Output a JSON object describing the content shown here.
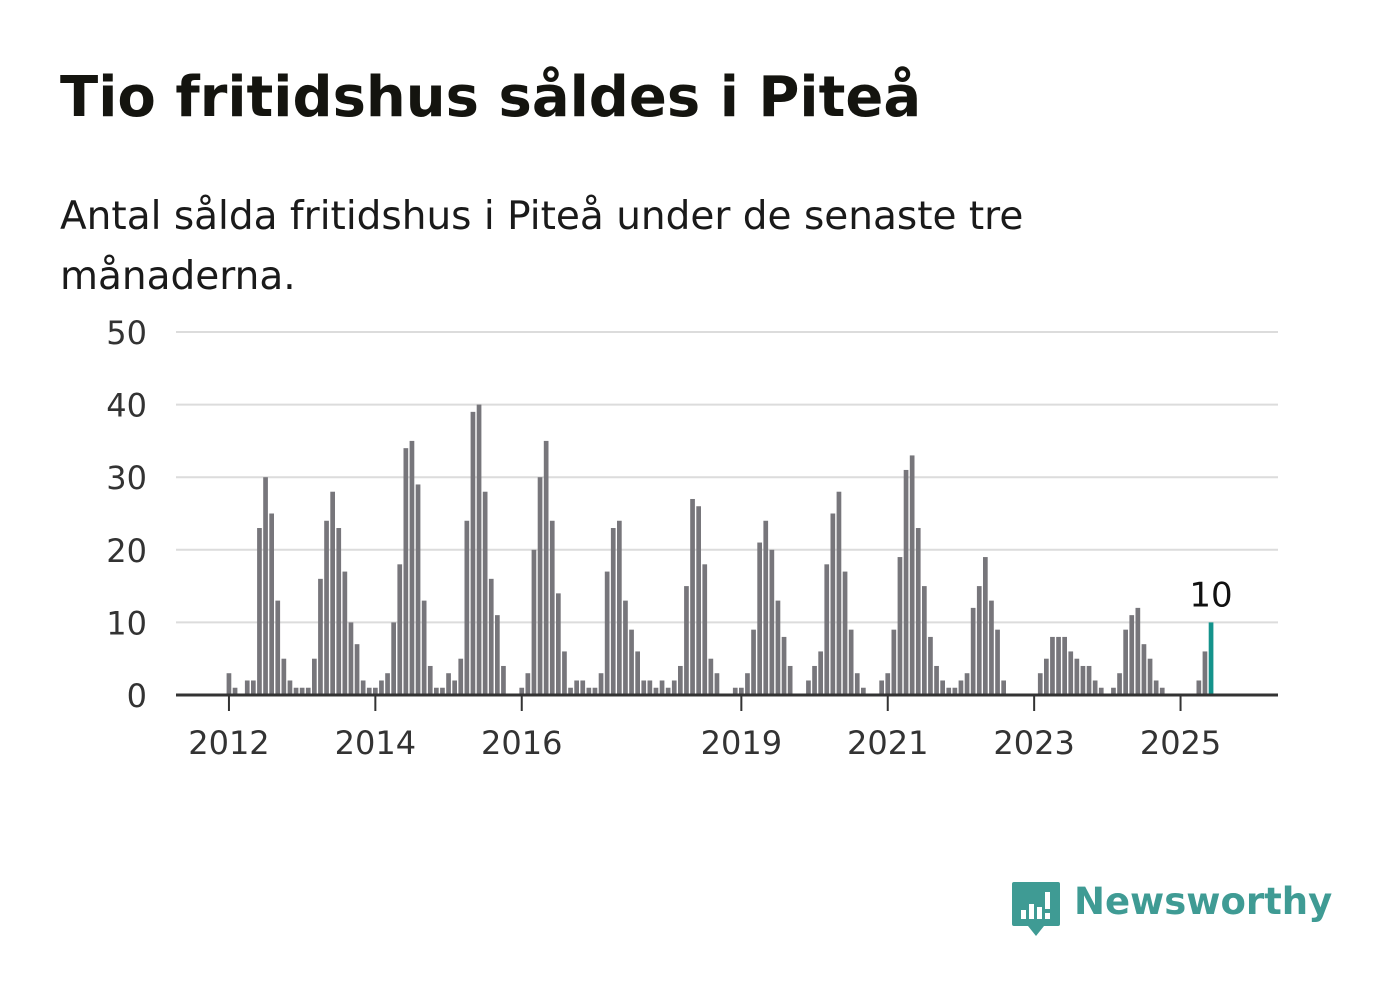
{
  "title": "Tio fritidshus såldes i Piteå",
  "subtitle": "Antal sålda fritidshus i Piteå under de senaste tre månaderna.",
  "logo": {
    "text": "Newsworthy",
    "icon": "newsworthy-logo-icon",
    "color": "#3f9b94"
  },
  "chart_data": {
    "type": "bar",
    "x_start": "2012-01",
    "x_step": "month",
    "ylim": [
      0,
      50
    ],
    "y_ticks": [
      0,
      10,
      20,
      30,
      40,
      50
    ],
    "x_tick_labels": [
      "2012",
      "2014",
      "2016",
      "2019",
      "2021",
      "2023",
      "2025"
    ],
    "grid": true,
    "bar_color": "#77767b",
    "highlight_color": "#14938c",
    "highlight_label": "10",
    "values": [
      3,
      1,
      0,
      2,
      2,
      23,
      30,
      25,
      13,
      5,
      2,
      1,
      1,
      1,
      5,
      16,
      24,
      28,
      23,
      17,
      10,
      7,
      2,
      1,
      1,
      2,
      3,
      10,
      18,
      34,
      35,
      29,
      13,
      4,
      1,
      1,
      3,
      2,
      5,
      24,
      39,
      40,
      28,
      16,
      11,
      4,
      0,
      0,
      1,
      3,
      20,
      30,
      35,
      24,
      14,
      6,
      1,
      2,
      2,
      1,
      1,
      3,
      17,
      23,
      24,
      13,
      9,
      6,
      2,
      2,
      1,
      2,
      1,
      2,
      4,
      15,
      27,
      26,
      18,
      5,
      3,
      0,
      0,
      1,
      1,
      3,
      9,
      21,
      24,
      20,
      13,
      8,
      4,
      0,
      0,
      2,
      4,
      6,
      18,
      25,
      28,
      17,
      9,
      3,
      1,
      0,
      0,
      2,
      3,
      9,
      19,
      31,
      33,
      23,
      15,
      8,
      4,
      2,
      1,
      1,
      2,
      3,
      12,
      15,
      19,
      13,
      9,
      2,
      0,
      0,
      0,
      0,
      0,
      3,
      5,
      8,
      8,
      8,
      6,
      5,
      4,
      4,
      2,
      1,
      0,
      1,
      3,
      9,
      11,
      12,
      7,
      5,
      2,
      1,
      0,
      0,
      0,
      0,
      0,
      2,
      6,
      10
    ]
  }
}
